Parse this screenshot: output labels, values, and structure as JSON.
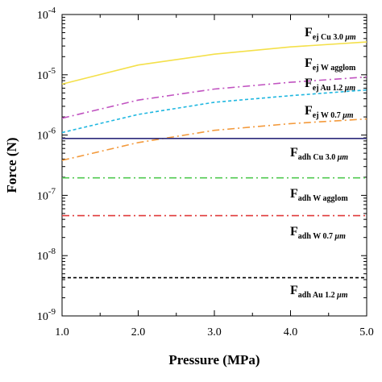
{
  "chart_data": {
    "type": "line",
    "xlabel": "Pressure (MPa)",
    "ylabel": "Force (N)",
    "xlim": [
      1.0,
      5.0
    ],
    "ylim": [
      1e-09,
      0.0001
    ],
    "yscale": "log",
    "grid": false,
    "x_ticks": [
      {
        "value": 1.0,
        "label": "1.0"
      },
      {
        "value": 2.0,
        "label": "2.0"
      },
      {
        "value": 3.0,
        "label": "3.0"
      },
      {
        "value": 4.0,
        "label": "4.0"
      },
      {
        "value": 5.0,
        "label": "5.0"
      }
    ],
    "y_ticks": [
      {
        "value": 1e-09,
        "base": "10",
        "exp": "-9"
      },
      {
        "value": 1e-08,
        "base": "10",
        "exp": "-8"
      },
      {
        "value": 1e-07,
        "base": "10",
        "exp": "-7"
      },
      {
        "value": 1e-06,
        "base": "10",
        "exp": "-6"
      },
      {
        "value": 1e-05,
        "base": "10",
        "exp": "-5"
      },
      {
        "value": 0.0001,
        "base": "10",
        "exp": "-4"
      }
    ],
    "series": [
      {
        "id": "ej-cu",
        "label_main": "F",
        "label_sub": "ej Cu 3.0 ",
        "label_sub_unit": "μm",
        "color": "#f4e04a",
        "dash": "",
        "x": [
          1.0,
          2.0,
          3.0,
          4.0,
          5.0
        ],
        "y": [
          7e-06,
          1.45e-05,
          2.2e-05,
          2.9e-05,
          3.5e-05
        ]
      },
      {
        "id": "ej-w-agglom",
        "label_main": "F",
        "label_sub": "ej W agglom",
        "label_sub_unit": "",
        "color": "#c154c1",
        "dash": "9,4,2,4",
        "x": [
          1.0,
          2.0,
          3.0,
          4.0,
          5.0
        ],
        "y": [
          1.9e-06,
          3.8e-06,
          5.8e-06,
          7.5e-06,
          9.2e-06
        ]
      },
      {
        "id": "ej-au",
        "label_main": "F",
        "label_sub": "ej Au 1.2 ",
        "label_sub_unit": "μm",
        "color": "#1fb7e0",
        "dash": "4,3",
        "x": [
          1.0,
          2.0,
          3.0,
          4.0,
          5.0
        ],
        "y": [
          1.1e-06,
          2.2e-06,
          3.5e-06,
          4.5e-06,
          5.6e-06
        ]
      },
      {
        "id": "ej-w",
        "label_main": "F",
        "label_sub": "ej W 0.7 ",
        "label_sub_unit": "μm",
        "color": "#f39a3c",
        "dash": "9,4,2,4",
        "x": [
          1.0,
          2.0,
          3.0,
          4.0,
          5.0
        ],
        "y": [
          3.8e-07,
          7.5e-07,
          1.2e-06,
          1.55e-06,
          1.85e-06
        ]
      },
      {
        "id": "adh-cu",
        "label_main": "F",
        "label_sub": "adh Cu 3.0 ",
        "label_sub_unit": "μm",
        "color": "#2c2a7a",
        "dash": "",
        "x": [
          1.0,
          5.0
        ],
        "y": [
          8.8e-07,
          8.8e-07
        ]
      },
      {
        "id": "adh-w-agglom",
        "label_main": "F",
        "label_sub": "adh W agglom",
        "label_sub_unit": "",
        "color": "#4fc94f",
        "dash": "9,4,2,4",
        "x": [
          1.0,
          5.0
        ],
        "y": [
          1.95e-07,
          1.95e-07
        ]
      },
      {
        "id": "adh-w",
        "label_main": "F",
        "label_sub": "adh W 0.7 ",
        "label_sub_unit": "μm",
        "color": "#e03a3a",
        "dash": "9,4,2,4",
        "x": [
          1.0,
          5.0
        ],
        "y": [
          4.6e-08,
          4.6e-08
        ]
      },
      {
        "id": "adh-au",
        "label_main": "F",
        "label_sub": "adh Au 1.2 ",
        "label_sub_unit": "μm",
        "color": "#000000",
        "dash": "4,3",
        "x": [
          1.0,
          5.0
        ],
        "y": [
          4.3e-09,
          4.3e-09
        ]
      }
    ]
  }
}
